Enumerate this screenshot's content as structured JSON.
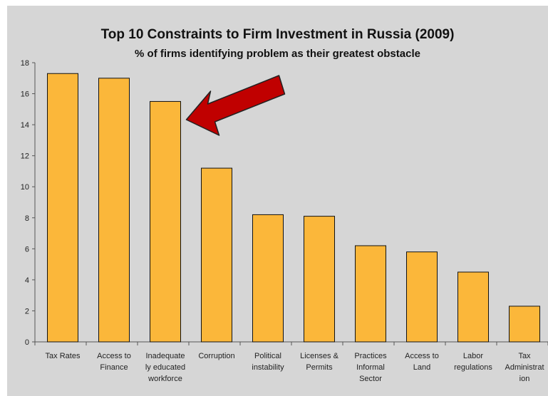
{
  "chart_data": {
    "type": "bar",
    "title": "Top 10 Constraints to Firm Investment in Russia (2009)",
    "subtitle": "% of firms identifying problem as their greatest obstacle",
    "xlabel": "",
    "ylabel": "",
    "ylim": [
      0,
      18
    ],
    "yticks": [
      0,
      2,
      4,
      6,
      8,
      10,
      12,
      14,
      16,
      18
    ],
    "categories": [
      [
        "Tax Rates"
      ],
      [
        "Access to",
        "Finance"
      ],
      [
        "Inadequate",
        "ly educated",
        "workforce"
      ],
      [
        "Corruption"
      ],
      [
        "Political",
        "instability"
      ],
      [
        "Licenses &",
        "Permits"
      ],
      [
        "Practices",
        "Informal",
        "Sector"
      ],
      [
        "Access to",
        "Land"
      ],
      [
        "Labor",
        "regulations"
      ],
      [
        "Tax",
        "Administrat",
        "ion"
      ]
    ],
    "values": [
      17.3,
      17.0,
      15.5,
      11.2,
      8.2,
      8.1,
      6.2,
      5.8,
      4.5,
      2.3
    ],
    "grid": false,
    "legend": "none",
    "bar_color": "#fbb73a",
    "annotation": {
      "type": "arrow",
      "points_to_category_index": 2,
      "color": "#c00000"
    }
  }
}
